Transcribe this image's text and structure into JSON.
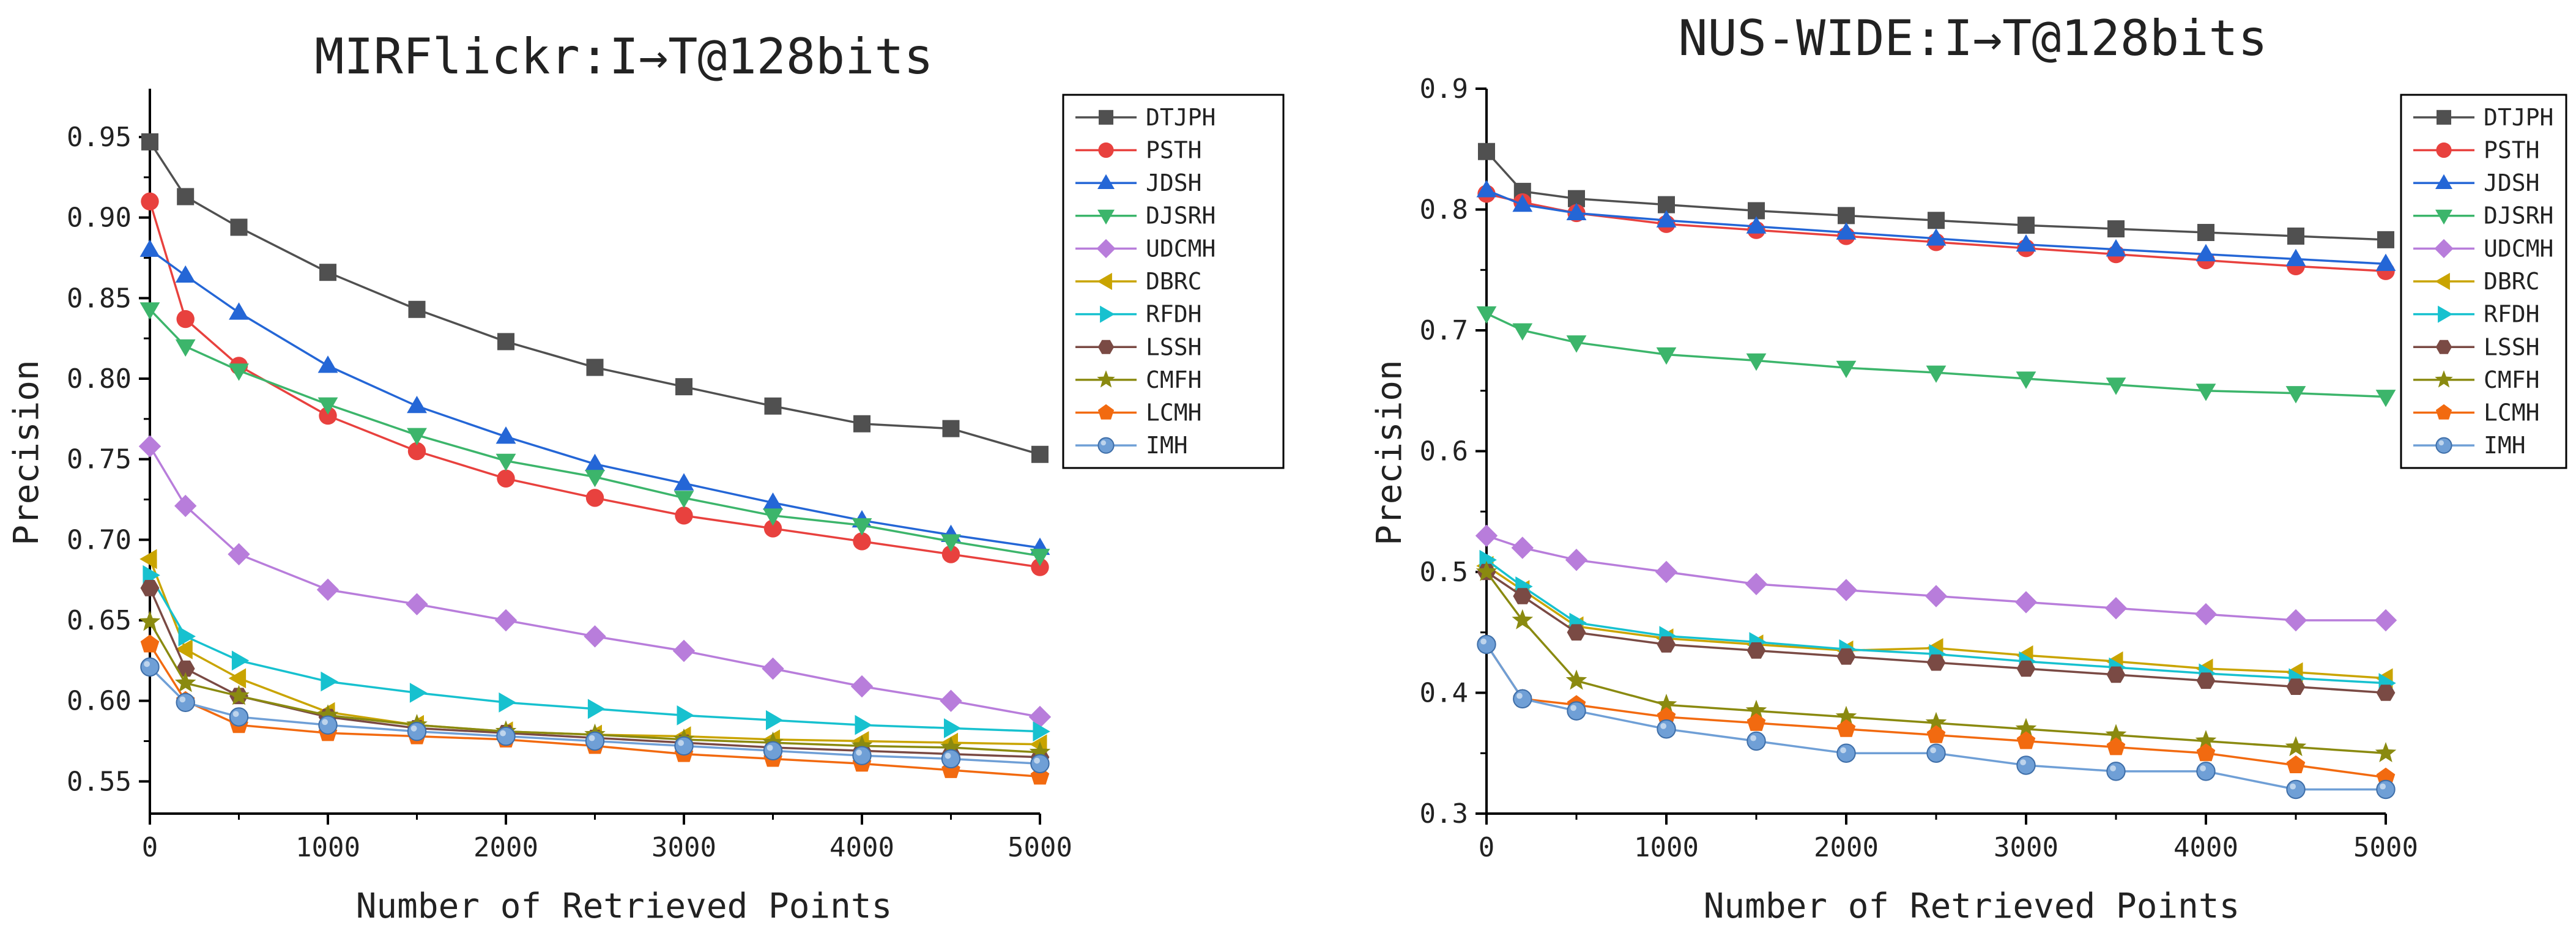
{
  "chart_data": [
    {
      "type": "line",
      "title": "MIRFlickr:I→T@128bits",
      "xlabel": "Number of Retrieved Points",
      "ylabel": "Precision",
      "xlim": [
        0,
        5000
      ],
      "ylim": [
        0.53,
        0.98
      ],
      "xticks": [
        0,
        1000,
        2000,
        3000,
        4000,
        5000
      ],
      "xtick_labels": [
        "0",
        "1000",
        "2000",
        "3000",
        "4000",
        "5000"
      ],
      "yticks": [
        0.55,
        0.6,
        0.65,
        0.7,
        0.75,
        0.8,
        0.85,
        0.9,
        0.95
      ],
      "ytick_labels": [
        "0.55",
        "0.60",
        "0.65",
        "0.70",
        "0.75",
        "0.80",
        "0.85",
        "0.90",
        "0.95"
      ],
      "grid": false,
      "legend_position": "top-right",
      "x": [
        0,
        200,
        500,
        1000,
        1500,
        2000,
        2500,
        3000,
        3500,
        4000,
        4500,
        5000
      ],
      "series": [
        {
          "name": "DTJPH",
          "color": "#505050",
          "marker": "square",
          "values": [
            0.947,
            0.913,
            0.894,
            0.866,
            0.843,
            0.823,
            0.807,
            0.795,
            0.783,
            0.772,
            0.769,
            0.753
          ]
        },
        {
          "name": "PSTH",
          "color": "#e8413e",
          "marker": "circle",
          "values": [
            0.91,
            0.837,
            0.808,
            0.777,
            0.755,
            0.738,
            0.726,
            0.715,
            0.707,
            0.699,
            0.691,
            0.683
          ]
        },
        {
          "name": "JDSH",
          "color": "#2466d6",
          "marker": "triangle-up",
          "values": [
            0.88,
            0.864,
            0.841,
            0.808,
            0.783,
            0.764,
            0.747,
            0.735,
            0.723,
            0.712,
            0.703,
            0.695
          ]
        },
        {
          "name": "DJSRH",
          "color": "#3cb56b",
          "marker": "triangle-down",
          "values": [
            0.843,
            0.82,
            0.805,
            0.784,
            0.765,
            0.749,
            0.739,
            0.726,
            0.715,
            0.709,
            0.699,
            0.69
          ]
        },
        {
          "name": "UDCMH",
          "color": "#b87ddb",
          "marker": "diamond",
          "values": [
            0.758,
            0.721,
            0.691,
            0.669,
            0.66,
            0.65,
            0.64,
            0.631,
            0.62,
            0.609,
            0.6,
            0.59
          ]
        },
        {
          "name": "DBRC",
          "color": "#c9a400",
          "marker": "triangle-left",
          "values": [
            0.688,
            0.632,
            0.614,
            0.593,
            0.585,
            0.581,
            0.579,
            0.578,
            0.576,
            0.575,
            0.574,
            0.573
          ]
        },
        {
          "name": "RFDH",
          "color": "#17c1cf",
          "marker": "triangle-right",
          "values": [
            0.678,
            0.64,
            0.625,
            0.612,
            0.605,
            0.599,
            0.595,
            0.591,
            0.588,
            0.585,
            0.583,
            0.581
          ]
        },
        {
          "name": "LSSH",
          "color": "#7a4a44",
          "marker": "hexagon",
          "values": [
            0.67,
            0.62,
            0.603,
            0.59,
            0.583,
            0.58,
            0.577,
            0.574,
            0.571,
            0.569,
            0.567,
            0.565
          ]
        },
        {
          "name": "CMFH",
          "color": "#8a8a10",
          "marker": "star",
          "values": [
            0.649,
            0.611,
            0.603,
            0.591,
            0.585,
            0.581,
            0.579,
            0.576,
            0.574,
            0.572,
            0.571,
            0.568
          ]
        },
        {
          "name": "LCMH",
          "color": "#f26a10",
          "marker": "pentagon",
          "values": [
            0.635,
            0.6,
            0.585,
            0.58,
            0.578,
            0.576,
            0.572,
            0.567,
            0.564,
            0.561,
            0.557,
            0.553
          ]
        },
        {
          "name": "IMH",
          "color": "#6f9fd6",
          "marker": "sphere",
          "values": [
            0.621,
            0.599,
            0.59,
            0.585,
            0.581,
            0.578,
            0.575,
            0.572,
            0.569,
            0.566,
            0.564,
            0.561
          ]
        }
      ]
    },
    {
      "type": "line",
      "title": "NUS-WIDE:I→T@128bits",
      "xlabel": "Number of Retrieved Points",
      "ylabel": "Precision",
      "xlim": [
        0,
        5000
      ],
      "ylim": [
        0.3,
        0.9
      ],
      "xticks": [
        0,
        1000,
        2000,
        3000,
        4000,
        5000
      ],
      "xtick_labels": [
        "0",
        "1000",
        "2000",
        "3000",
        "4000",
        "5000"
      ],
      "yticks": [
        0.3,
        0.4,
        0.5,
        0.6,
        0.7,
        0.8,
        0.9
      ],
      "ytick_labels": [
        "0.3",
        "0.4",
        "0.5",
        "0.6",
        "0.7",
        "0.8",
        "0.9"
      ],
      "grid": false,
      "legend_position": "top-right",
      "x": [
        0,
        200,
        500,
        1000,
        1500,
        2000,
        2500,
        3000,
        3500,
        4000,
        4500,
        5000
      ],
      "series": [
        {
          "name": "DTJPH",
          "color": "#505050",
          "marker": "square",
          "values": [
            0.848,
            0.815,
            0.809,
            0.804,
            0.799,
            0.795,
            0.791,
            0.787,
            0.784,
            0.781,
            0.778,
            0.775
          ]
        },
        {
          "name": "PSTH",
          "color": "#e8413e",
          "marker": "circle",
          "values": [
            0.813,
            0.806,
            0.797,
            0.788,
            0.783,
            0.778,
            0.773,
            0.768,
            0.763,
            0.758,
            0.753,
            0.749
          ]
        },
        {
          "name": "JDSH",
          "color": "#2466d6",
          "marker": "triangle-up",
          "values": [
            0.816,
            0.804,
            0.797,
            0.791,
            0.786,
            0.781,
            0.776,
            0.771,
            0.767,
            0.763,
            0.759,
            0.755
          ]
        },
        {
          "name": "DJSRH",
          "color": "#3cb56b",
          "marker": "triangle-down",
          "values": [
            0.714,
            0.7,
            0.69,
            0.68,
            0.675,
            0.669,
            0.665,
            0.66,
            0.655,
            0.65,
            0.648,
            0.645
          ]
        },
        {
          "name": "UDCMH",
          "color": "#b87ddb",
          "marker": "diamond",
          "values": [
            0.53,
            0.52,
            0.51,
            0.5,
            0.49,
            0.485,
            0.48,
            0.475,
            0.47,
            0.465,
            0.46,
            0.46
          ]
        },
        {
          "name": "DBRC",
          "color": "#c9a400",
          "marker": "triangle-left",
          "values": [
            0.505,
            0.485,
            0.455,
            0.445,
            0.44,
            0.435,
            0.437,
            0.431,
            0.426,
            0.42,
            0.417,
            0.412
          ]
        },
        {
          "name": "RFDH",
          "color": "#17c1cf",
          "marker": "triangle-right",
          "values": [
            0.51,
            0.488,
            0.458,
            0.447,
            0.442,
            0.436,
            0.432,
            0.426,
            0.421,
            0.416,
            0.412,
            0.408
          ]
        },
        {
          "name": "LSSH",
          "color": "#7a4a44",
          "marker": "hexagon",
          "values": [
            0.5,
            0.48,
            0.45,
            0.44,
            0.435,
            0.43,
            0.425,
            0.42,
            0.415,
            0.41,
            0.405,
            0.4
          ]
        },
        {
          "name": "CMFH",
          "color": "#8a8a10",
          "marker": "star",
          "values": [
            0.5,
            0.46,
            0.41,
            0.39,
            0.385,
            0.38,
            0.375,
            0.37,
            0.365,
            0.36,
            0.355,
            0.35
          ]
        },
        {
          "name": "LCMH",
          "color": "#f26a10",
          "marker": "pentagon",
          "values": [
            0.44,
            0.395,
            0.39,
            0.38,
            0.375,
            0.37,
            0.365,
            0.36,
            0.355,
            0.35,
            0.34,
            0.33
          ]
        },
        {
          "name": "IMH",
          "color": "#6f9fd6",
          "marker": "sphere",
          "values": [
            0.44,
            0.395,
            0.385,
            0.37,
            0.36,
            0.35,
            0.35,
            0.34,
            0.335,
            0.335,
            0.32,
            0.32
          ]
        }
      ]
    }
  ]
}
